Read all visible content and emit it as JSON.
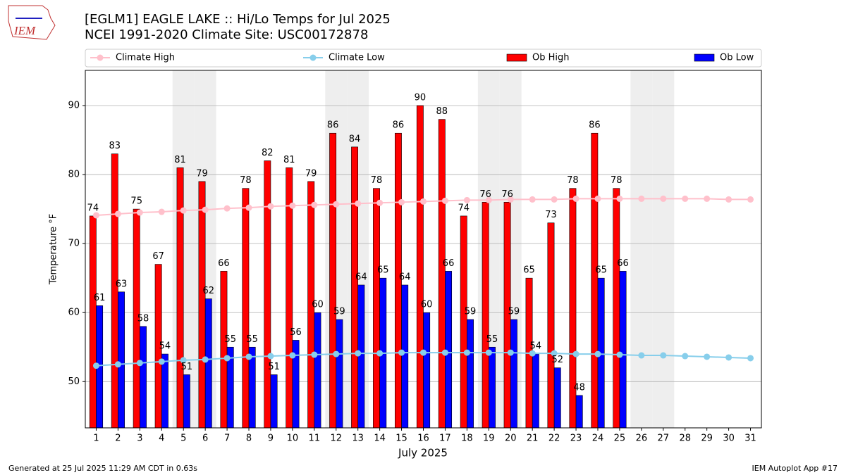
{
  "chart_data": {
    "type": "bar",
    "title": "[EGLM1] EAGLE LAKE :: Hi/Lo Temps for Jul 2025",
    "subtitle": "NCEI 1991-2020 Climate Site: USC00172878",
    "logo_text": "IEM",
    "xlabel": "July 2025",
    "ylabel": "Temperature °F",
    "x": [
      1,
      2,
      3,
      4,
      5,
      6,
      7,
      8,
      9,
      10,
      11,
      12,
      13,
      14,
      15,
      16,
      17,
      18,
      19,
      20,
      21,
      22,
      23,
      24,
      25,
      26,
      27,
      28,
      29,
      30,
      31
    ],
    "xlim": [
      0.5,
      31.5
    ],
    "xticks": [
      1,
      2,
      3,
      4,
      5,
      6,
      7,
      8,
      9,
      10,
      11,
      12,
      13,
      14,
      15,
      16,
      17,
      18,
      19,
      20,
      21,
      22,
      23,
      24,
      25,
      26,
      27,
      28,
      29,
      30,
      31
    ],
    "ylim": [
      43.3,
      95.1
    ],
    "yticks": [
      50,
      60,
      70,
      80,
      90
    ],
    "grid": true,
    "shaded_days": [
      5,
      6,
      12,
      13,
      19,
      20,
      26,
      27
    ],
    "shade_color": "#eeeeee",
    "series": [
      {
        "name": "Climate High",
        "kind": "line",
        "color": "#ffc0cb",
        "values": [
          74.1,
          74.3,
          74.5,
          74.6,
          74.8,
          74.9,
          75.1,
          75.2,
          75.4,
          75.5,
          75.6,
          75.7,
          75.8,
          75.9,
          76.0,
          76.1,
          76.2,
          76.3,
          76.3,
          76.4,
          76.4,
          76.4,
          76.5,
          76.5,
          76.5,
          76.5,
          76.5,
          76.5,
          76.5,
          76.4,
          76.4
        ]
      },
      {
        "name": "Climate Low",
        "kind": "line",
        "color": "#87ceeb",
        "values": [
          52.3,
          52.5,
          52.7,
          52.9,
          53.1,
          53.2,
          53.4,
          53.6,
          53.7,
          53.8,
          53.9,
          54.0,
          54.1,
          54.1,
          54.2,
          54.2,
          54.2,
          54.2,
          54.2,
          54.2,
          54.1,
          54.1,
          54.0,
          54.0,
          53.9,
          53.8,
          53.8,
          53.7,
          53.6,
          53.5,
          53.4
        ]
      },
      {
        "name": "Ob High",
        "kind": "bar",
        "color": "#ff0000",
        "values": [
          74,
          83,
          75,
          67,
          81,
          79,
          66,
          78,
          82,
          81,
          79,
          86,
          84,
          78,
          86,
          90,
          88,
          74,
          76,
          76,
          65,
          73,
          78,
          86,
          78,
          null,
          null,
          null,
          null,
          null,
          null
        ]
      },
      {
        "name": "Ob Low",
        "kind": "bar",
        "color": "#0000ff",
        "values": [
          61,
          63,
          58,
          54,
          51,
          62,
          55,
          55,
          51,
          56,
          60,
          59,
          64,
          65,
          64,
          60,
          66,
          59,
          55,
          59,
          54,
          52,
          48,
          65,
          66,
          null,
          null,
          null,
          null,
          null,
          null
        ]
      }
    ],
    "footer_left": "Generated at 25 Jul 2025 11:29 AM CDT in 0.63s",
    "footer_right": "IEM Autoplot App #17"
  }
}
